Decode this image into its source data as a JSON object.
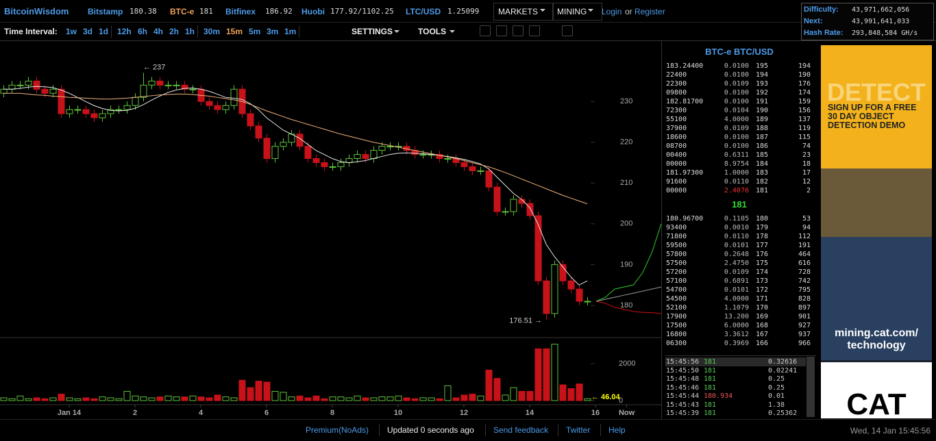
{
  "header": {
    "site": "BitcoinWisdom",
    "markets": [
      {
        "name": "Bitstamp",
        "price": "180.38"
      },
      {
        "name": "BTC-e",
        "price": "181"
      },
      {
        "name": "Bitfinex",
        "price": "186.92"
      },
      {
        "name": "Huobi",
        "price": "177.92/1102.25"
      },
      {
        "name": "LTC/USD",
        "price": "1.25099"
      }
    ],
    "menus": [
      "MARKETS",
      "MINING"
    ],
    "login": "Login",
    "or": "or",
    "register": "Register",
    "stats": [
      {
        "label": "Difficulty:",
        "value": "43,971,662,056"
      },
      {
        "label": "Next:",
        "value": "43,991,641,033"
      },
      {
        "label": "Hash Rate:",
        "value": "293,848,584 GH/s"
      }
    ]
  },
  "toolbar": {
    "label": "Time Interval:",
    "groups": [
      [
        "1w",
        "3d",
        "1d"
      ],
      [
        "12h",
        "6h",
        "4h",
        "2h",
        "1h"
      ],
      [
        "30m",
        "15m",
        "5m",
        "3m",
        "1m"
      ]
    ],
    "active_interval": "15m",
    "settings": "SETTINGS",
    "tools": "TOOLS"
  },
  "chart_data": {
    "type": "candlestick",
    "up_color": "#5fc43a",
    "down_color": "#c8121a",
    "open": [
      232,
      233,
      234,
      234,
      235,
      233,
      232,
      233,
      227,
      228,
      228,
      227,
      226,
      227,
      228,
      228,
      229,
      231,
      234,
      235,
      234,
      234,
      234,
      233,
      233,
      230,
      229,
      228,
      229,
      233,
      227,
      224,
      221,
      216,
      219,
      220,
      222,
      219,
      216,
      215,
      214,
      214,
      215,
      216,
      217,
      216,
      218,
      219,
      219,
      219,
      218,
      217,
      217,
      217,
      216,
      216,
      215,
      214,
      213,
      213,
      209,
      203,
      203,
      206,
      205,
      202,
      186,
      178,
      190,
      186,
      184,
      181
    ],
    "high": [
      234,
      235,
      235,
      236,
      236,
      234,
      234,
      234,
      229,
      229,
      229,
      228,
      228,
      229,
      229,
      230,
      232,
      237,
      236,
      236,
      235,
      235,
      235,
      234,
      234,
      231,
      230,
      230,
      234,
      234,
      228,
      225,
      222,
      220,
      221,
      223,
      223,
      220,
      217,
      216,
      215,
      216,
      217,
      218,
      218,
      219,
      220,
      220,
      220,
      220,
      219,
      218,
      218,
      218,
      217,
      217,
      216,
      215,
      214,
      214,
      210,
      204,
      207,
      207,
      206,
      203,
      187,
      191,
      191,
      187,
      185,
      182
    ],
    "low": [
      231,
      232,
      233,
      233,
      232,
      231,
      231,
      226,
      226,
      227,
      226,
      225,
      225,
      226,
      227,
      227,
      228,
      230,
      233,
      233,
      233,
      233,
      232,
      232,
      229,
      228,
      227,
      227,
      228,
      226,
      223,
      220,
      215,
      215,
      218,
      219,
      218,
      215,
      214,
      213,
      213,
      213,
      214,
      215,
      215,
      215,
      217,
      218,
      218,
      217,
      216,
      216,
      216,
      215,
      215,
      214,
      213,
      212,
      212,
      208,
      202,
      202,
      202,
      204,
      201,
      185,
      176.51,
      177,
      185,
      183,
      180,
      180
    ],
    "close": [
      233,
      234,
      234,
      235,
      233,
      232,
      233,
      227,
      228,
      228,
      227,
      226,
      227,
      228,
      228,
      229,
      231,
      234,
      235,
      234,
      234,
      234,
      233,
      233,
      230,
      229,
      228,
      229,
      233,
      227,
      224,
      221,
      216,
      219,
      220,
      222,
      219,
      216,
      215,
      214,
      214,
      215,
      216,
      217,
      216,
      218,
      219,
      219,
      219,
      218,
      217,
      217,
      217,
      216,
      216,
      215,
      214,
      213,
      213,
      209,
      203,
      203,
      206,
      205,
      202,
      186,
      178,
      190,
      186,
      184,
      181,
      181
    ],
    "moving_averages": [
      {
        "color": "#e8e8e8",
        "values": [
          233,
          233,
          233.2,
          233.5,
          233.7,
          233.6,
          233.4,
          232.8,
          232,
          231,
          230,
          229,
          228.3,
          227.8,
          227.7,
          227.8,
          228.3,
          229.2,
          230.3,
          231.3,
          232.2,
          232.8,
          233.2,
          233.3,
          233,
          232.5,
          231.8,
          231,
          230.8,
          230.5,
          229.5,
          228,
          226,
          224.5,
          223,
          222,
          221,
          219.5,
          218,
          217,
          216,
          215.3,
          215,
          215.2,
          215.5,
          216,
          216.5,
          217,
          217.3,
          217.4,
          217.3,
          217.2,
          217,
          216.8,
          216.5,
          216.2,
          215.8,
          215.3,
          214.7,
          213.5,
          211.5,
          209.5,
          207.5,
          206,
          204,
          200,
          195,
          192,
          189.5,
          187,
          185,
          186
        ]
      },
      {
        "color": "#f0b27a",
        "values": [
          232,
          232,
          232,
          231.8,
          231.6,
          231.5,
          231.3,
          231.2,
          231,
          230.9,
          230.8,
          230.7,
          230.6,
          230.6,
          230.7,
          230.8,
          231,
          231.2,
          231.4,
          231.6,
          231.7,
          231.8,
          231.8,
          231.7,
          231.5,
          231.3,
          231,
          230.7,
          230.4,
          230,
          229.3,
          228.5,
          227.7,
          227,
          226.3,
          225.6,
          225,
          224.4,
          223.8,
          223.2,
          222.6,
          222,
          221.5,
          221,
          220.5,
          220,
          219.6,
          219.2,
          218.8,
          218.4,
          218,
          217.6,
          217.2,
          216.8,
          216.4,
          216,
          215.5,
          215,
          214.5,
          214,
          213.3,
          212.6,
          211.8,
          211,
          210.2,
          209.4,
          208.6,
          207.8,
          207,
          206.3,
          205.6,
          204.9
        ]
      }
    ],
    "depth": [
      {
        "color": "#2ecc2e",
        "values": [
          181,
          182,
          184,
          184.5,
          185,
          188,
          193,
          200
        ]
      },
      {
        "color": "#d01010",
        "values": [
          181,
          180.5,
          179.5,
          179,
          178.5,
          178.3,
          178.2,
          178
        ]
      },
      {
        "color": "#9a9a9a",
        "values": [
          181,
          181.5,
          182,
          182.5,
          183,
          183.5,
          184,
          184.5
        ]
      }
    ],
    "ylim": [
      172.1,
      244.8
    ],
    "yticks": [
      180,
      190,
      200,
      210,
      220,
      230
    ],
    "volume": [
      150,
      100,
      250,
      100,
      150,
      100,
      150,
      350,
      150,
      100,
      150,
      100,
      200,
      150,
      100,
      500,
      250,
      200,
      150,
      200,
      250,
      200,
      200,
      250,
      200,
      150,
      300,
      200,
      150,
      1100,
      700,
      1050,
      1000,
      500,
      450,
      200,
      250,
      150,
      250,
      100,
      200,
      200,
      150,
      250,
      150,
      150,
      200,
      200,
      250,
      150,
      100,
      150,
      150,
      100,
      800,
      150,
      300,
      350,
      250,
      1650,
      1200,
      300,
      700,
      500,
      500,
      2800,
      2800,
      3050,
      850,
      650,
      900,
      100
    ],
    "volume_ylim": [
      0,
      3330
    ],
    "volume_yticks": [
      0,
      2000
    ],
    "xticks": [
      {
        "value": 8,
        "label": "Jan 14"
      },
      {
        "value": 16,
        "label": "2"
      },
      {
        "value": 24,
        "label": "4"
      },
      {
        "value": 32,
        "label": "6"
      },
      {
        "value": 40,
        "label": "8"
      },
      {
        "value": 48,
        "label": "10"
      },
      {
        "value": 56,
        "label": "12"
      },
      {
        "value": 64,
        "label": "14"
      },
      {
        "value": 72,
        "label": "16"
      },
      {
        "value": 75.8,
        "label": "Now"
      }
    ],
    "annotations": [
      "← 237",
      "176.51 →",
      "← 46.04"
    ]
  },
  "order_book": {
    "title": "BTC-e BTC/USD",
    "asks": [
      [
        "183.24400",
        "0.0100",
        "195",
        "194"
      ],
      [
        "22400",
        "0.0100",
        "194",
        "190"
      ],
      [
        "22300",
        "0.0109",
        "193",
        "176"
      ],
      [
        "09800",
        "0.0100",
        "192",
        "174"
      ],
      [
        "182.81700",
        "0.0100",
        "191",
        "159"
      ],
      [
        "72300",
        "0.0104",
        "190",
        "156"
      ],
      [
        "55100",
        "4.0000",
        "189",
        "137"
      ],
      [
        "37900",
        "0.0109",
        "188",
        "119"
      ],
      [
        "18600",
        "0.0100",
        "187",
        "115"
      ],
      [
        "08700",
        "0.0100",
        "186",
        "74"
      ],
      [
        "00400",
        "0.6311",
        "185",
        "23"
      ],
      [
        "00000",
        "8.9754",
        "184",
        "18"
      ],
      [
        "181.97300",
        "1.0000",
        "183",
        "17"
      ],
      [
        "91600",
        "0.0110",
        "182",
        "12"
      ],
      [
        "00000",
        "2.4076",
        "181",
        "2"
      ]
    ],
    "last": "181",
    "bids": [
      [
        "180.96700",
        "0.1105",
        "180",
        "53"
      ],
      [
        "93400",
        "0.0010",
        "179",
        "94"
      ],
      [
        "71800",
        "0.0110",
        "178",
        "112"
      ],
      [
        "59500",
        "0.0101",
        "177",
        "191"
      ],
      [
        "57800",
        "0.2648",
        "176",
        "464"
      ],
      [
        "57500",
        "2.4750",
        "175",
        "616"
      ],
      [
        "57200",
        "0.0109",
        "174",
        "728"
      ],
      [
        "57100",
        "0.6891",
        "173",
        "742"
      ],
      [
        "54700",
        "0.0101",
        "172",
        "795"
      ],
      [
        "54500",
        "4.0000",
        "171",
        "828"
      ],
      [
        "52100",
        "1.1079",
        "170",
        "897"
      ],
      [
        "17900",
        "13.200",
        "169",
        "901"
      ],
      [
        "17500",
        "6.0000",
        "168",
        "927"
      ],
      [
        "16800",
        "3.3612",
        "167",
        "937"
      ],
      [
        "06300",
        "0.3969",
        "166",
        "966"
      ]
    ]
  },
  "trades": [
    [
      "15:45:56",
      "181",
      "0.32616"
    ],
    [
      "15:45:50",
      "181",
      "0.02241"
    ],
    [
      "15:45:48",
      "181",
      "0.25"
    ],
    [
      "15:45:46",
      "181",
      "0.25"
    ],
    [
      "15:45:44",
      "180.934",
      "0.01"
    ],
    [
      "15:45:43",
      "181",
      "1.38"
    ],
    [
      "15:45:39",
      "181",
      "0.25362"
    ]
  ],
  "ad": {
    "headline": "DETECT",
    "offer": "SIGN UP FOR A FREE 30 DAY OBJECT DETECTION DEMO",
    "url": "mining.cat.com/ technology",
    "brand": "CAT"
  },
  "footer": {
    "links": [
      "Premium(NoAds)",
      "Updated 0 seconds ago",
      "Send feedback",
      "Twitter",
      "Help"
    ],
    "time": "Wed, 14 Jan 15:45:56"
  }
}
